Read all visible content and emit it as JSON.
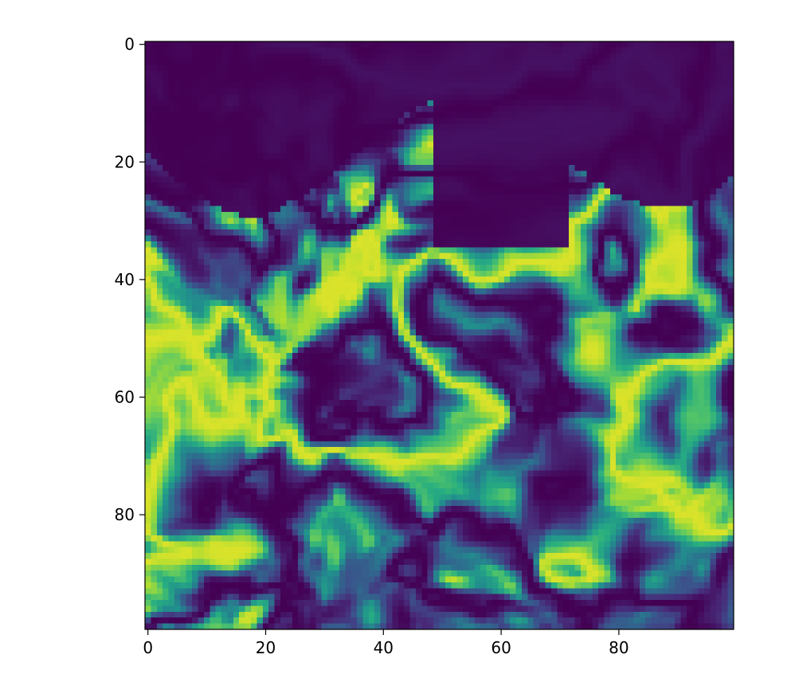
{
  "chart_data": {
    "type": "heatmap",
    "colormap": "viridis",
    "grid_size": [
      100,
      100
    ],
    "x_ticks": [
      0,
      20,
      40,
      60,
      80
    ],
    "y_ticks": [
      0,
      20,
      40,
      60,
      80
    ],
    "x_tick_labels": [
      "0",
      "20",
      "40",
      "60",
      "80"
    ],
    "y_tick_labels": [
      "0",
      "20",
      "40",
      "60",
      "80"
    ],
    "xlim": [
      -0.5,
      99.5
    ],
    "ylim": [
      99.5,
      -0.5
    ],
    "value_range": [
      0,
      1
    ],
    "grid": false,
    "title": "",
    "xlabel": "",
    "ylabel": "",
    "colors": {
      "low": "#440154",
      "mid": "#21918c",
      "high": "#fde725"
    }
  }
}
